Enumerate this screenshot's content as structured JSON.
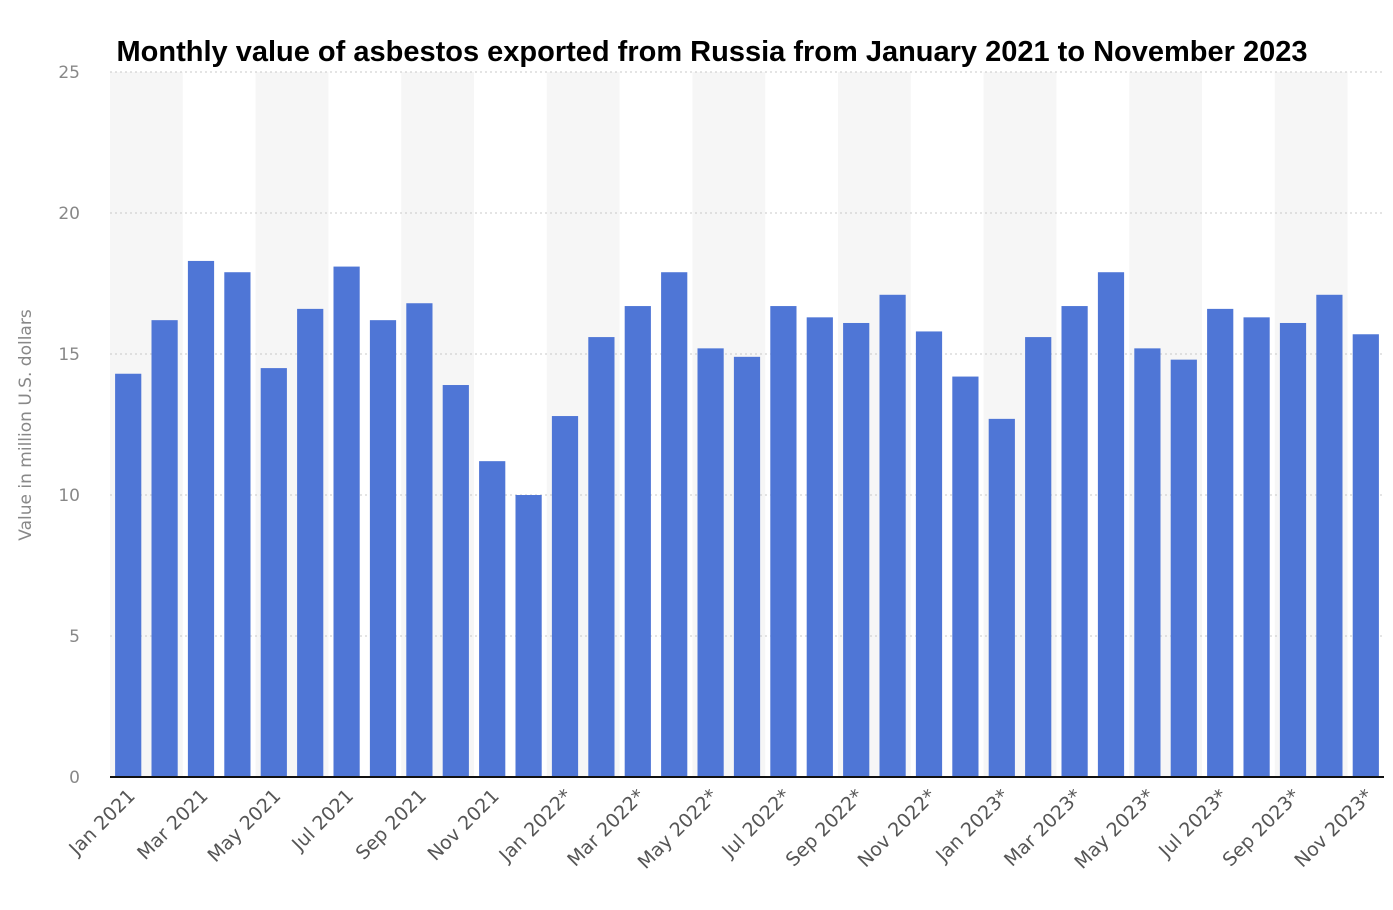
{
  "chart_data": {
    "type": "bar",
    "title": "Monthly value of asbestos exported from Russia from January 2021 to November 2023",
    "xlabel": "",
    "ylabel": "Value in million U.S. dollars",
    "ylim": [
      0,
      25
    ],
    "yticks": [
      0,
      5,
      10,
      15,
      20,
      25
    ],
    "grid": true,
    "bar_color": "#4f76d6",
    "categories": [
      "Jan 2021",
      "Feb 2021",
      "Mar 2021",
      "Apr 2021",
      "May 2021",
      "Jun 2021",
      "Jul 2021",
      "Aug 2021",
      "Sep 2021",
      "Oct 2021",
      "Nov 2021",
      "Dec 2021",
      "Jan 2022*",
      "Feb 2022*",
      "Mar 2022*",
      "Apr 2022*",
      "May 2022*",
      "Jun 2022*",
      "Jul 2022*",
      "Aug 2022*",
      "Sep 2022*",
      "Oct 2022*",
      "Nov 2022*",
      "Dec 2022*",
      "Jan 2023*",
      "Feb 2023*",
      "Mar 2023*",
      "Apr 2023*",
      "May 2023*",
      "Jun 2023*",
      "Jul 2023*",
      "Aug 2023*",
      "Sep 2023*",
      "Oct 2023*",
      "Nov 2023*"
    ],
    "xtick_labels": [
      "Jan 2021",
      "Mar 2021",
      "May 2021",
      "Jul 2021",
      "Sep 2021",
      "Nov 2021",
      "Jan 2022*",
      "Mar 2022*",
      "May 2022*",
      "Jul 2022*",
      "Sep 2022*",
      "Nov 2022*",
      "Jan 2023*",
      "Mar 2023*",
      "May 2023*",
      "Jul 2023*",
      "Sep 2023*",
      "Nov 2023*"
    ],
    "values": [
      14.3,
      16.2,
      18.3,
      17.9,
      14.5,
      16.6,
      18.1,
      16.2,
      16.8,
      13.9,
      11.2,
      10.0,
      12.8,
      15.6,
      16.7,
      17.9,
      15.2,
      14.9,
      16.7,
      16.3,
      16.1,
      17.1,
      15.8,
      14.2,
      12.7,
      15.6,
      16.7,
      17.9,
      15.2,
      14.8,
      16.6,
      16.3,
      16.1,
      17.1,
      15.7
    ]
  }
}
